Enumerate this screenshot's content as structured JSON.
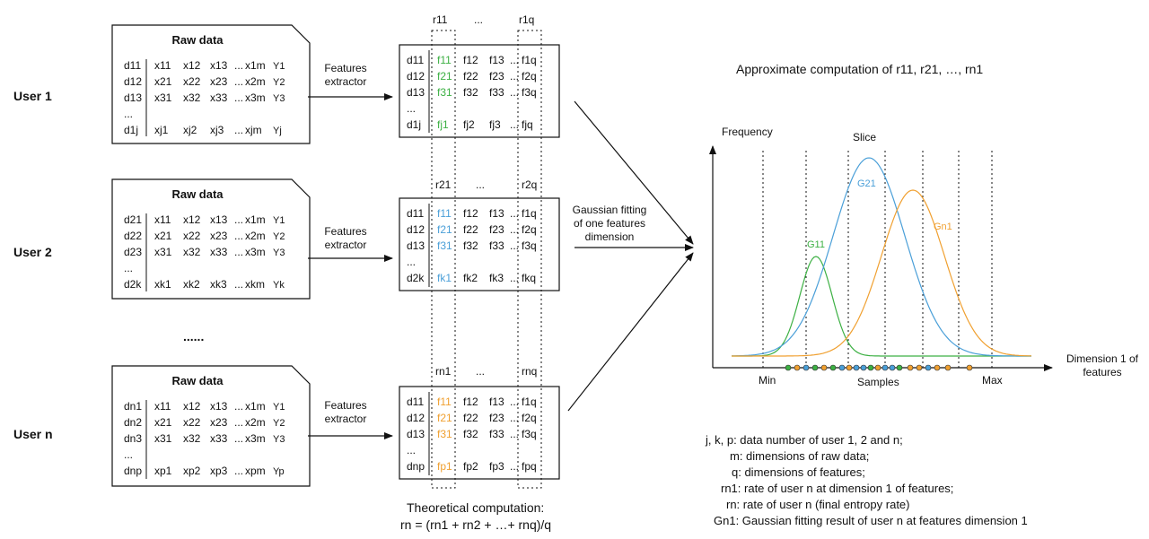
{
  "users": [
    {
      "label": "User 1",
      "raw_title": "Raw data",
      "rows": [
        [
          "d11",
          "x11",
          "x12",
          "x13",
          "...",
          "x1m",
          "Y1"
        ],
        [
          "d12",
          "x21",
          "x22",
          "x23",
          "...",
          "x2m",
          "Y2"
        ],
        [
          "d13",
          "x31",
          "x32",
          "x33",
          "...",
          "x3m",
          "Y3"
        ],
        [
          "...",
          "",
          "",
          "",
          "",
          "",
          ""
        ],
        [
          "d1j",
          "xj1",
          "xj2",
          "xj3",
          "...",
          "xjm",
          "Yj"
        ]
      ],
      "extractor": [
        "Features",
        "extractor"
      ],
      "r_first": "r11",
      "r_dots": "...",
      "r_last": "r1q",
      "feat_rows": [
        [
          "d11",
          "f11",
          "f12",
          "f13",
          "...",
          "f1q"
        ],
        [
          "d12",
          "f21",
          "f22",
          "f23",
          "...",
          "f2q"
        ],
        [
          "d13",
          "f31",
          "f32",
          "f33",
          "...",
          "f3q"
        ],
        [
          "...",
          "",
          "",
          "",
          "",
          ""
        ],
        [
          "d1j",
          "fj1",
          "fj2",
          "fj3",
          "...",
          "fjq"
        ]
      ],
      "highlight": "green"
    },
    {
      "label": "User 2",
      "raw_title": "Raw data",
      "rows": [
        [
          "d21",
          "x11",
          "x12",
          "x13",
          "...",
          "x1m",
          "Y1"
        ],
        [
          "d22",
          "x21",
          "x22",
          "x23",
          "...",
          "x2m",
          "Y2"
        ],
        [
          "d23",
          "x31",
          "x32",
          "x33",
          "...",
          "x3m",
          "Y3"
        ],
        [
          "...",
          "",
          "",
          "",
          "",
          "",
          ""
        ],
        [
          "d2k",
          "xk1",
          "xk2",
          "xk3",
          "...",
          "xkm",
          "Yk"
        ]
      ],
      "extractor": [
        "Features",
        "extractor"
      ],
      "r_first": "r21",
      "r_dots": "...",
      "r_last": "r2q",
      "feat_rows": [
        [
          "d11",
          "f11",
          "f12",
          "f13",
          "...",
          "f1q"
        ],
        [
          "d12",
          "f21",
          "f22",
          "f23",
          "...",
          "f2q"
        ],
        [
          "d13",
          "f31",
          "f32",
          "f33",
          "...",
          "f3q"
        ],
        [
          "...",
          "",
          "",
          "",
          "",
          ""
        ],
        [
          "d2k",
          "fk1",
          "fk2",
          "fk3",
          "...",
          "fkq"
        ]
      ],
      "highlight": "blue"
    },
    {
      "label": "User n",
      "raw_title": "Raw data",
      "rows": [
        [
          "dn1",
          "x11",
          "x12",
          "x13",
          "...",
          "x1m",
          "Y1"
        ],
        [
          "dn2",
          "x21",
          "x22",
          "x23",
          "...",
          "x2m",
          "Y2"
        ],
        [
          "dn3",
          "x31",
          "x32",
          "x33",
          "...",
          "x3m",
          "Y3"
        ],
        [
          "...",
          "",
          "",
          "",
          "",
          "",
          ""
        ],
        [
          "dnp",
          "xp1",
          "xp2",
          "xp3",
          "...",
          "xpm",
          "Yp"
        ]
      ],
      "extractor": [
        "Features",
        "extractor"
      ],
      "r_first": "rn1",
      "r_dots": "...",
      "r_last": "rnq",
      "feat_rows": [
        [
          "d11",
          "f11",
          "f12",
          "f13",
          "...",
          "f1q"
        ],
        [
          "d12",
          "f21",
          "f22",
          "f23",
          "...",
          "f2q"
        ],
        [
          "d13",
          "f31",
          "f32",
          "f33",
          "...",
          "f3q"
        ],
        [
          "...",
          "",
          "",
          "",
          "",
          ""
        ],
        [
          "dnp",
          "fp1",
          "fp2",
          "fp3",
          "...",
          "fpq"
        ]
      ],
      "highlight": "orange"
    }
  ],
  "ellipsis_users": "......",
  "gaussian_fitting": [
    "Gaussian fitting",
    "of one features",
    "dimension"
  ],
  "theoretical": [
    "Theoretical computation:",
    "rn = (rn1 + rn2 + …+ rnq)/q"
  ],
  "approx_title": "Approximate computation of r11, r21, …, rn1",
  "plot": {
    "frequency": "Frequency",
    "slice": "Slice",
    "dimension": [
      "Dimension 1 of",
      "features"
    ],
    "min": "Min",
    "samples": "Samples",
    "max": "Max",
    "g11": "G11",
    "g21": "G21",
    "gn1": "Gn1"
  },
  "legend": [
    "j, k, p: data number of user 1, 2 and n;",
    "m: dimensions of raw data;",
    "q: dimensions of features;",
    "rn1: rate of user n at dimension 1 of features;",
    "rn: rate of user n (final entropy rate)",
    "Gn1: Gaussian fitting result of user n at features dimension 1"
  ],
  "colors": {
    "green": "#3cb043",
    "blue": "#4a9fd8",
    "orange": "#f0a030",
    "line": "#111111"
  }
}
